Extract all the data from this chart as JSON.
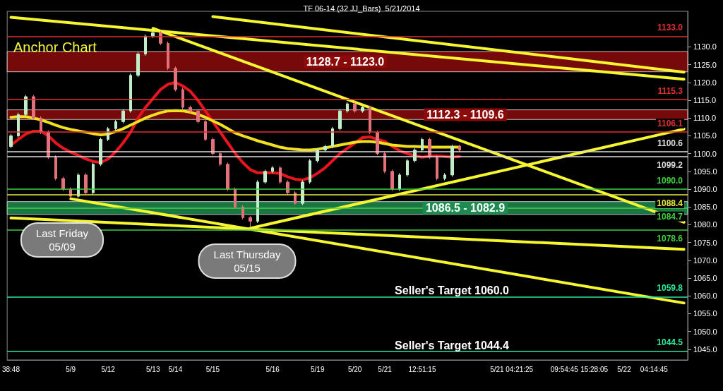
{
  "chart_data": {
    "type": "candlestick",
    "title": "Anchor Chart",
    "subtitle": "TF 06-14 (32 JJ_Bars)  5/21/2014",
    "categories": [
      "38:48",
      null,
      null,
      null,
      null,
      null,
      null,
      null,
      "5/9",
      null,
      null,
      null,
      null,
      "5/12",
      null,
      null,
      null,
      null,
      null,
      "5/13",
      null,
      null,
      "5/14",
      null,
      null,
      null,
      null,
      "5/15",
      null,
      null,
      null,
      null,
      null,
      null,
      null,
      "5/16",
      null,
      null,
      null,
      null,
      null,
      "5/19",
      null,
      null,
      null,
      null,
      "5/20",
      null,
      null,
      null,
      "5/21",
      null,
      null,
      null,
      null,
      "12:51:15",
      null,
      null,
      null,
      null,
      null,
      null,
      null,
      null,
      null,
      "5/21",
      null,
      null,
      "04:21:25",
      null,
      null,
      null,
      null,
      null,
      "09:54:45",
      null,
      null,
      null,
      "15:28:05",
      null,
      null,
      null,
      "5/22",
      null,
      null,
      null,
      "04:14:45",
      null,
      null,
      null,
      null
    ],
    "series": [
      {
        "ohlc": [
          [
            1102,
            1105.5,
            1101.5,
            1105
          ],
          [
            1105,
            1111.5,
            1104.5,
            1111
          ],
          [
            1111,
            1116.5,
            1110.5,
            1116
          ],
          [
            1116,
            1116.5,
            1109.5,
            1110
          ],
          [
            1110,
            1110.5,
            1105.5,
            1106
          ],
          [
            1106,
            1106.5,
            1098.5,
            1099
          ],
          [
            1099,
            1099.5,
            1092.5,
            1093
          ],
          [
            1093,
            1093.5,
            1089.5,
            1090
          ],
          [
            1090,
            1090.5,
            1087.5,
            1088
          ],
          [
            1088,
            1094.5,
            1087.5,
            1094
          ],
          [
            1094,
            1094.5,
            1088.5,
            1089
          ],
          [
            1089,
            1097.5,
            1088.5,
            1097
          ],
          [
            1097,
            1104.5,
            1096.5,
            1104
          ],
          [
            1104,
            1107.5,
            1103.5,
            1107
          ],
          [
            1107,
            1109.5,
            1106.5,
            1109
          ],
          [
            1109,
            1112.5,
            1108.5,
            1112
          ],
          [
            1112,
            1122.5,
            1111.5,
            1122
          ],
          [
            1122,
            1128.5,
            1121.5,
            1128
          ],
          [
            1128,
            1133.5,
            1127.5,
            1133
          ],
          [
            1133,
            1134.5,
            1132.5,
            1134
          ],
          [
            1134,
            1134.5,
            1130.5,
            1131
          ],
          [
            1131,
            1131.5,
            1123.5,
            1124
          ],
          [
            1124,
            1124.5,
            1117.5,
            1118
          ],
          [
            1118,
            1118.5,
            1112.5,
            1113
          ],
          [
            1113,
            1113.5,
            1111.5,
            1112
          ],
          [
            1112,
            1112.5,
            1108.5,
            1109
          ],
          [
            1109,
            1109.5,
            1103.5,
            1104
          ],
          [
            1104,
            1104.5,
            1099.5,
            1100
          ],
          [
            1100,
            1100.5,
            1096.5,
            1097
          ],
          [
            1097,
            1097.5,
            1089.5,
            1090
          ],
          [
            1090,
            1090.5,
            1084.5,
            1085
          ],
          [
            1085,
            1085.5,
            1081.5,
            1082
          ],
          [
            1082,
            1082.5,
            1079.5,
            1081
          ],
          [
            1081,
            1092.5,
            1080.5,
            1092
          ],
          [
            1092,
            1095.5,
            1091.5,
            1095
          ],
          [
            1095,
            1096.5,
            1094.5,
            1096
          ],
          [
            1096,
            1096.5,
            1091.5,
            1092
          ],
          [
            1092,
            1092.5,
            1088.5,
            1089
          ],
          [
            1089,
            1089.5,
            1085.5,
            1086
          ],
          [
            1086,
            1092.5,
            1085.5,
            1092
          ],
          [
            1092,
            1098.5,
            1091.5,
            1098
          ],
          [
            1098,
            1101.5,
            1097.5,
            1101
          ],
          [
            1101,
            1102.5,
            1100.5,
            1102
          ],
          [
            1102,
            1107.5,
            1101.5,
            1107
          ],
          [
            1107,
            1112.5,
            1106.5,
            1112
          ],
          [
            1112,
            1114.5,
            1111.5,
            1114
          ],
          [
            1114,
            1114.5,
            1111.5,
            1112
          ],
          [
            1112,
            1113.5,
            1111.5,
            1113
          ],
          [
            1113,
            1113.5,
            1105.5,
            1106
          ],
          [
            1106,
            1106.5,
            1099.5,
            1100
          ],
          [
            1100,
            1100.5,
            1094.5,
            1095
          ],
          [
            1095,
            1095.5,
            1089.5,
            1090
          ],
          [
            1090,
            1094.5,
            1089.5,
            1094
          ],
          [
            1094,
            1098.5,
            1093.5,
            1098
          ],
          [
            1098,
            1101.5,
            1097.5,
            1101
          ],
          [
            1101,
            1104.5,
            1100.5,
            1104
          ],
          [
            1104,
            1104.5,
            1098.5,
            1099
          ],
          [
            1099,
            1099.5,
            1092.5,
            1093
          ],
          [
            1093,
            1094.5,
            1092.5,
            1094
          ],
          [
            1094,
            1102.5,
            1093.5,
            1102
          ],
          [
            1102,
            1102.5,
            1100.5,
            1101
          ],
          null,
          null,
          null,
          null,
          null,
          null,
          null,
          null,
          null,
          null,
          null,
          null,
          null,
          null,
          null,
          null,
          null,
          null,
          null,
          null,
          null,
          null,
          null,
          null,
          null,
          null,
          null,
          null,
          null,
          null
        ]
      },
      {
        "type": "line",
        "color": "#e8141e",
        "values": [
          1102.4,
          1104,
          1105.5,
          1106.3,
          1106.3,
          1105,
          1103,
          1101.5,
          1100.4,
          1099.5,
          1098.5,
          1097.8,
          1097.5,
          1098.5,
          1100.5,
          1103,
          1106,
          1110,
          1113,
          1115.5,
          1118,
          1119.5,
          1120,
          1119,
          1117.5,
          1115,
          1112,
          1109,
          1106,
          1103,
          1100,
          1097.5,
          1095.5,
          1094.6,
          1094.6,
          1094.6,
          1094.4,
          1093.5,
          1092.8,
          1092.6,
          1093.2,
          1094.5,
          1096,
          1098,
          1100,
          1101.5,
          1103,
          1104.5,
          1104.7,
          1104,
          1103.4,
          1102,
          1100.8,
          1100,
          1099.4,
          1099,
          1099.3,
          1099.4,
          1099.2,
          1099,
          1099.2,
          null,
          null,
          null,
          null,
          null,
          null,
          null,
          null,
          null,
          null,
          null,
          null,
          null,
          null,
          null,
          null,
          null,
          null,
          null,
          null,
          null,
          null,
          null,
          null,
          null,
          null,
          null,
          null,
          null,
          null
        ]
      },
      {
        "type": "line",
        "color": "#f0e020",
        "values": [
          1110.2,
          1110.4,
          1110.4,
          1110,
          1109.5,
          1108.8,
          1108,
          1107.3,
          1106.8,
          1106.4,
          1106,
          1105.6,
          1105.3,
          1105.5,
          1106.2,
          1107,
          1108,
          1109,
          1110,
          1110.8,
          1111.5,
          1112,
          1112.1,
          1112,
          1111.6,
          1111,
          1110.2,
          1109.2,
          1108.2,
          1107,
          1105.8,
          1105,
          1104.3,
          1103.6,
          1103,
          1102.4,
          1101.8,
          1101.4,
          1101.2,
          1101,
          1101,
          1101.2,
          1101.6,
          1102,
          1102.4,
          1102.8,
          1103.2,
          1103.4,
          1103.4,
          1103.2,
          1102.8,
          1102.4,
          1102.2,
          1102,
          1102,
          1101.9,
          1101.8,
          1101.8,
          1101.8,
          1101.8,
          1101.8,
          null,
          null,
          null,
          null,
          null,
          null,
          null,
          null,
          null,
          null,
          null,
          null,
          null,
          null,
          null,
          null,
          null,
          null,
          null,
          null,
          null,
          null,
          null,
          null,
          null,
          null,
          null,
          null,
          null,
          null
        ]
      },
      {
        "type": "line",
        "color": "#f5f530",
        "values": [
          1138.3,
          null,
          null,
          null,
          null,
          null,
          null,
          null,
          null,
          null,
          null,
          null,
          null,
          null,
          null,
          null,
          null,
          null,
          null,
          null,
          null,
          null,
          null,
          null,
          null,
          null,
          null,
          null,
          null,
          null,
          null,
          null,
          null,
          null,
          null,
          null,
          null,
          null,
          null,
          null,
          null,
          null,
          null,
          null,
          null,
          null,
          null,
          null,
          null,
          null,
          null,
          null,
          null,
          null,
          null,
          null,
          null,
          null,
          null,
          null,
          null,
          null,
          null,
          null,
          null,
          null,
          null,
          null,
          null,
          null,
          null,
          null,
          null,
          null,
          null,
          null,
          null,
          null,
          null,
          null,
          null,
          null,
          null,
          null,
          null,
          null,
          null,
          null,
          null,
          null,
          1120.9
        ]
      },
      {
        "type": "line",
        "color": "#f5f530",
        "values": [
          null,
          null,
          null,
          null,
          null,
          null,
          null,
          null,
          null,
          null,
          null,
          null,
          null,
          null,
          null,
          null,
          null,
          null,
          null,
          null,
          null,
          null,
          null,
          null,
          null,
          null,
          null,
          1138.5,
          null,
          null,
          null,
          null,
          null,
          null,
          null,
          null,
          null,
          null,
          null,
          null,
          null,
          null,
          null,
          null,
          null,
          null,
          null,
          null,
          null,
          null,
          null,
          null,
          null,
          null,
          null,
          null,
          null,
          null,
          null,
          null,
          null,
          null,
          null,
          null,
          null,
          null,
          null,
          null,
          null,
          null,
          null,
          null,
          null,
          null,
          null,
          null,
          null,
          null,
          null,
          null,
          null,
          null,
          null,
          null,
          null,
          null,
          null,
          null,
          null,
          null,
          1122.9
        ]
      },
      {
        "type": "line",
        "color": "#f5f530",
        "values": [
          null,
          null,
          null,
          null,
          null,
          null,
          null,
          null,
          null,
          null,
          null,
          null,
          null,
          null,
          null,
          null,
          null,
          null,
          null,
          1135.2,
          null,
          null,
          null,
          null,
          null,
          null,
          null,
          null,
          null,
          null,
          null,
          null,
          null,
          null,
          null,
          null,
          null,
          null,
          null,
          null,
          null,
          null,
          null,
          null,
          null,
          null,
          null,
          null,
          null,
          null,
          null,
          null,
          null,
          null,
          null,
          null,
          null,
          null,
          null,
          null,
          null,
          null,
          null,
          null,
          null,
          null,
          null,
          null,
          null,
          null,
          null,
          null,
          null,
          null,
          null,
          null,
          null,
          null,
          null,
          null,
          null,
          null,
          null,
          null,
          null,
          null,
          null,
          null,
          null,
          null,
          1080.7
        ]
      },
      {
        "type": "line",
        "color": "#f5f530",
        "values": [
          null,
          null,
          null,
          null,
          null,
          null,
          null,
          null,
          null,
          null,
          null,
          null,
          null,
          null,
          null,
          null,
          null,
          null,
          null,
          null,
          null,
          null,
          null,
          null,
          null,
          null,
          null,
          null,
          null,
          null,
          null,
          null,
          1079,
          null,
          null,
          null,
          null,
          null,
          null,
          null,
          null,
          null,
          null,
          null,
          null,
          null,
          null,
          null,
          null,
          null,
          null,
          null,
          null,
          null,
          null,
          null,
          null,
          null,
          null,
          null,
          null,
          null,
          null,
          null,
          null,
          null,
          null,
          null,
          null,
          null,
          null,
          null,
          null,
          null,
          null,
          null,
          null,
          null,
          null,
          null,
          null,
          null,
          null,
          null,
          null,
          null,
          null,
          null,
          null,
          null,
          1106.9
        ]
      },
      {
        "type": "line",
        "color": "#f5f530",
        "values": [
          null,
          null,
          null,
          null,
          null,
          null,
          null,
          null,
          1087.3,
          null,
          null,
          null,
          null,
          null,
          null,
          null,
          null,
          null,
          null,
          null,
          null,
          null,
          null,
          null,
          null,
          null,
          null,
          null,
          null,
          null,
          null,
          null,
          null,
          null,
          null,
          null,
          null,
          null,
          null,
          null,
          null,
          null,
          null,
          null,
          null,
          null,
          null,
          null,
          null,
          null,
          null,
          null,
          null,
          null,
          null,
          null,
          null,
          null,
          null,
          null,
          null,
          null,
          null,
          null,
          null,
          null,
          null,
          null,
          null,
          null,
          null,
          null,
          null,
          null,
          null,
          null,
          null,
          null,
          null,
          null,
          null,
          null,
          null,
          null,
          null,
          null,
          null,
          null,
          null,
          null,
          1058
        ]
      },
      {
        "type": "line",
        "color": "#f5f530",
        "values": [
          1081.9,
          null,
          null,
          null,
          null,
          null,
          null,
          null,
          null,
          null,
          null,
          null,
          null,
          null,
          null,
          null,
          null,
          null,
          null,
          null,
          null,
          null,
          null,
          null,
          null,
          null,
          null,
          null,
          null,
          null,
          null,
          null,
          null,
          null,
          null,
          null,
          null,
          null,
          null,
          null,
          null,
          null,
          null,
          null,
          null,
          null,
          null,
          null,
          null,
          null,
          null,
          null,
          null,
          null,
          null,
          null,
          null,
          null,
          null,
          null,
          null,
          null,
          null,
          null,
          null,
          null,
          null,
          null,
          null,
          null,
          null,
          null,
          null,
          null,
          null,
          null,
          null,
          null,
          null,
          null,
          null,
          null,
          null,
          null,
          null,
          null,
          null,
          null,
          null,
          null,
          1073.1
        ]
      }
    ],
    "ylim": [
      1042,
      1140
    ],
    "yticks": [
      {
        "value": 1045,
        "label": "1045.0"
      },
      {
        "value": 1050,
        "label": "1050.0"
      },
      {
        "value": 1055,
        "label": "1055.0"
      },
      {
        "value": 1060,
        "label": "1060.0"
      },
      {
        "value": 1065,
        "label": "1065.0"
      },
      {
        "value": 1070,
        "label": "1070.0"
      },
      {
        "value": 1075,
        "label": "1075.0"
      },
      {
        "value": 1080,
        "label": "1080.0"
      },
      {
        "value": 1085,
        "label": "1085.0"
      },
      {
        "value": 1090,
        "label": "1090.0"
      },
      {
        "value": 1095,
        "label": "1095.0"
      },
      {
        "value": 1100,
        "label": "1100.0"
      },
      {
        "value": 1105,
        "label": "1105.0"
      },
      {
        "value": 1110,
        "label": "1110.0"
      },
      {
        "value": 1115,
        "label": "1115.0"
      },
      {
        "value": 1120,
        "label": "1120.0"
      },
      {
        "value": 1125,
        "label": "1125.0"
      },
      {
        "value": 1130,
        "label": "1130.0"
      }
    ],
    "bands": [
      {
        "axis": "y",
        "from": 1123.0,
        "to": 1128.7,
        "label": "1128.7 - 1123.0",
        "color": "#8b0a0a"
      },
      {
        "axis": "y",
        "from": 1109.6,
        "to": 1112.3,
        "label": "1112.3 - 1109.6",
        "color": "#8b0a0a"
      },
      {
        "axis": "y",
        "from": 1082.9,
        "to": 1086.5,
        "label": "1086.5 - 1082.9",
        "color": "#1e8c50"
      }
    ],
    "ref_lines": [
      {
        "axis": "y",
        "value": 1133.0,
        "label": "1133.0",
        "color": "#e03030"
      },
      {
        "axis": "y",
        "value": 1115.3,
        "label": "1115.3",
        "color": "#e03030"
      },
      {
        "axis": "y",
        "value": 1106.1,
        "label": "1106.1",
        "color": "#e03030"
      },
      {
        "axis": "y",
        "value": 1100.6,
        "label": "1100.6",
        "color": "#dddddd"
      },
      {
        "axis": "y",
        "value": 1099.2,
        "label": "1099.2",
        "color": "#dddddd"
      },
      {
        "axis": "y",
        "value": 1090.0,
        "label": "1090.0",
        "color": "#40d040"
      },
      {
        "axis": "y",
        "value": 1088.4,
        "label": "1088.4",
        "color": "#e8e840"
      },
      {
        "axis": "y",
        "value": 1084.7,
        "label": "1084.7",
        "color": "#40d040"
      },
      {
        "axis": "y",
        "value": 1078.6,
        "label": "1078.6",
        "color": "#40d040"
      },
      {
        "axis": "y",
        "value": 1059.8,
        "label": "1059.8",
        "color": "#2ee89a"
      },
      {
        "axis": "y",
        "value": 1044.5,
        "label": "1044.5",
        "color": "#2ee89a"
      }
    ],
    "annotations": [
      "Last Friday\n05/09",
      "Last Thursday\n05/15",
      "Seller's Target 1060.0",
      "Seller's Target 1044.4"
    ]
  }
}
